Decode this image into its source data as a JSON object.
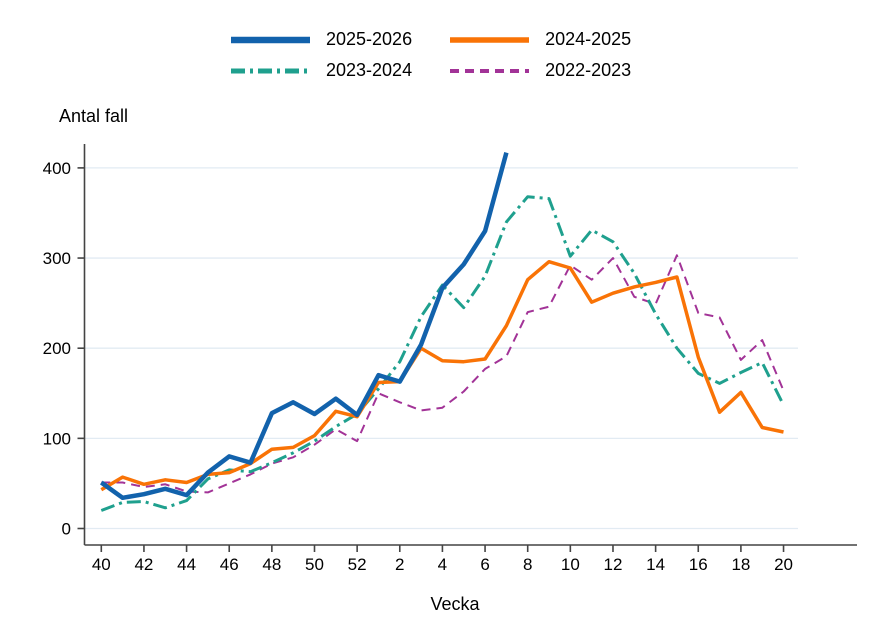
{
  "chart_data": {
    "type": "line",
    "title": "Antal fall",
    "xlabel": "Vecka",
    "ylabel": "Antal fall",
    "grid": "horizontal",
    "legend_position": "top-center",
    "ylim": [
      0,
      400
    ],
    "yticks": [
      0,
      100,
      200,
      300,
      400
    ],
    "ytick_labels": [
      "0",
      "100",
      "200",
      "300",
      "400"
    ],
    "categories": [
      40,
      41,
      42,
      43,
      44,
      45,
      46,
      47,
      48,
      49,
      50,
      51,
      52,
      1,
      2,
      3,
      4,
      5,
      6,
      7,
      8,
      9,
      10,
      11,
      12,
      13,
      14,
      15,
      16,
      17,
      18,
      19,
      20
    ],
    "x_tick_labels": [
      "40",
      "42",
      "44",
      "46",
      "48",
      "50",
      "52",
      "2",
      "4",
      "6",
      "8",
      "10",
      "12",
      "14",
      "16",
      "18",
      "20"
    ],
    "x_tick_every": 2,
    "series": [
      {
        "name": "2025-2026",
        "color": "#1262ac",
        "line_style": "solid",
        "line_width": 4.5,
        "values": [
          51,
          34,
          38,
          44,
          37,
          62,
          80,
          73,
          128,
          140,
          127,
          144,
          126,
          170,
          163,
          204,
          267,
          293,
          330,
          417
        ]
      },
      {
        "name": "2024-2025",
        "color": "#f97306",
        "line_style": "solid",
        "line_width": 3.5,
        "values": [
          43,
          57,
          49,
          54,
          51,
          60,
          62,
          72,
          88,
          90,
          103,
          130,
          124,
          162,
          163,
          200,
          186,
          185,
          188,
          225,
          276,
          296,
          289,
          251,
          261,
          268,
          273,
          279,
          190,
          129,
          151,
          112,
          107
        ]
      },
      {
        "name": "2023-2024",
        "color": "#1fa08e",
        "line_style": "dash-dot",
        "line_width": 3,
        "values": [
          20,
          29,
          30,
          23,
          31,
          55,
          65,
          63,
          73,
          84,
          97,
          113,
          127,
          155,
          185,
          235,
          270,
          245,
          280,
          340,
          368,
          366,
          302,
          331,
          318,
          283,
          238,
          200,
          172,
          161,
          173,
          184,
          137
        ]
      },
      {
        "name": "2022-2023",
        "color": "#a23397",
        "line_style": "dashed",
        "line_width": 2,
        "values": [
          51,
          51,
          46,
          49,
          41,
          40,
          50,
          60,
          72,
          79,
          93,
          110,
          97,
          150,
          140,
          131,
          134,
          152,
          177,
          191,
          240,
          246,
          292,
          276,
          300,
          257,
          249,
          303,
          239,
          234,
          187,
          209,
          153
        ]
      }
    ],
    "colors": {
      "axis": "#444444",
      "gridline": "#e2ebf3",
      "text": "#000000"
    }
  }
}
